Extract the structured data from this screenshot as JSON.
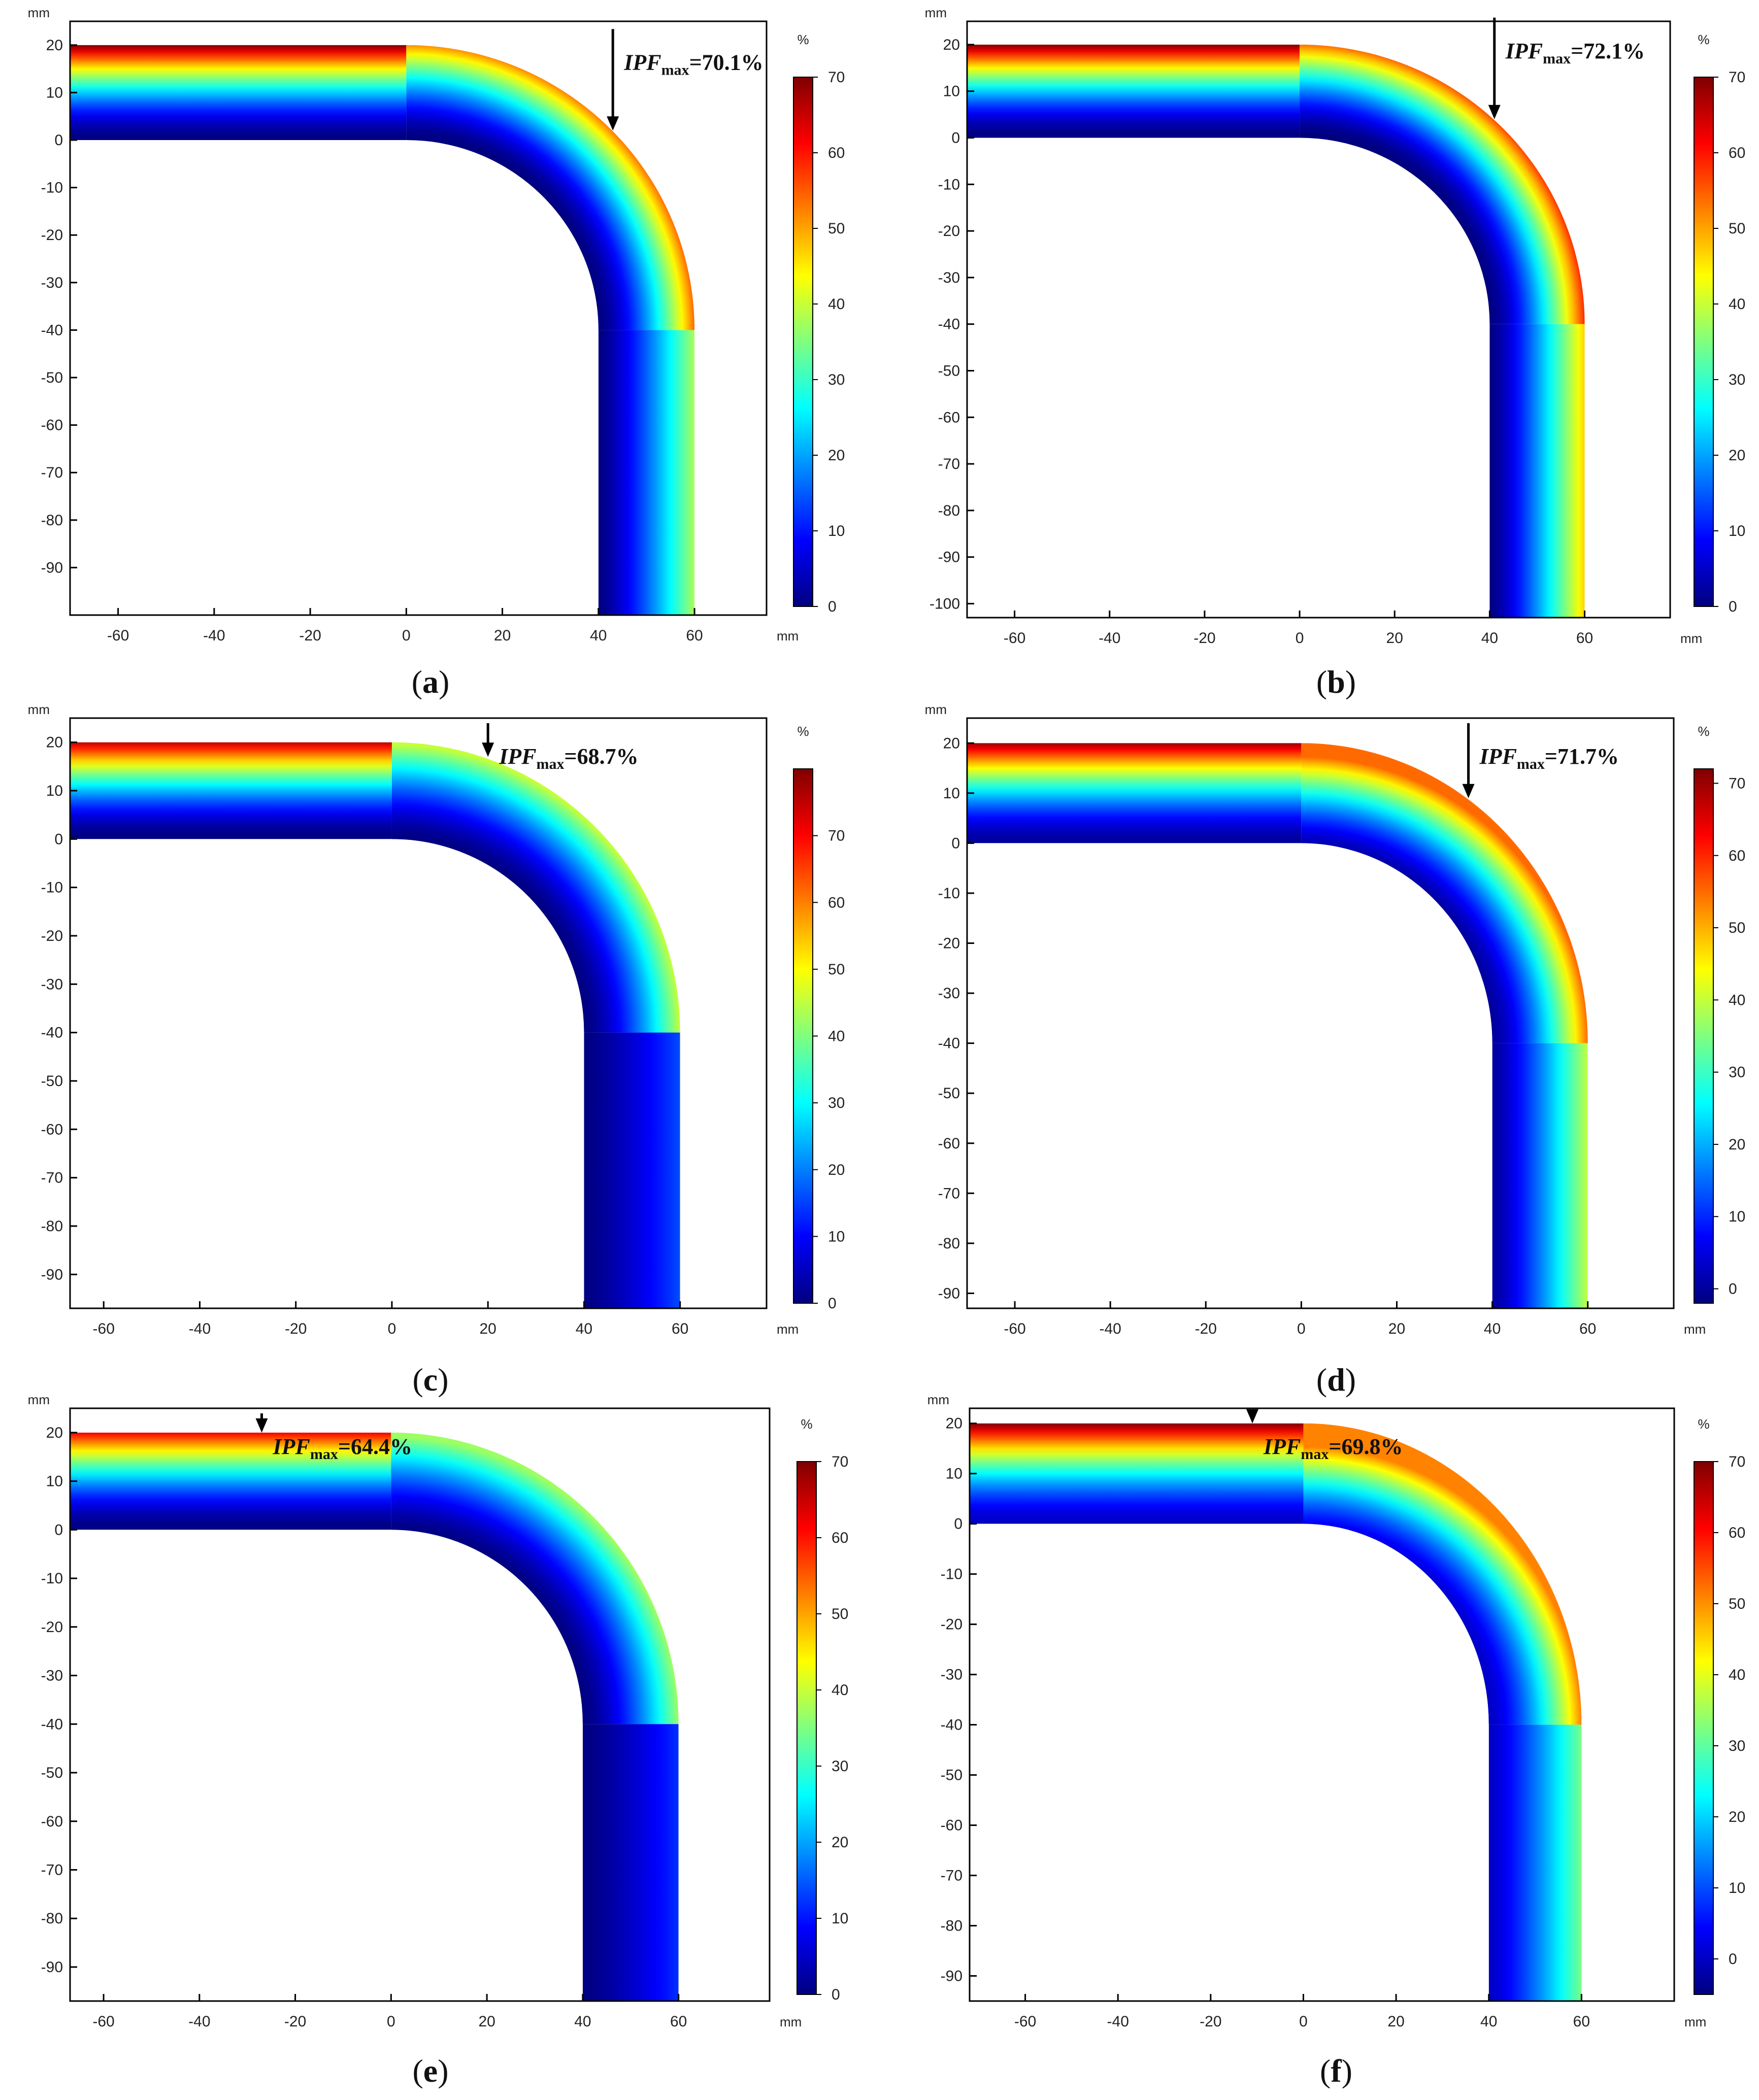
{
  "colormap": [
    "#00007f",
    "#0000ff",
    "#007fff",
    "#00ffff",
    "#7fff7f",
    "#ffff00",
    "#ff7f00",
    "#ff0000",
    "#7f0000"
  ],
  "chart_data": [
    {
      "type": "heatmap",
      "panel_label": "a",
      "x_unit": "mm",
      "y_unit": "mm",
      "colorbar_unit": "%",
      "xlim": [
        -70,
        75
      ],
      "ylim": [
        -100,
        25
      ],
      "xticks": [
        -60,
        -40,
        -20,
        0,
        20,
        40,
        60
      ],
      "yticks": [
        20,
        10,
        0,
        -10,
        -20,
        -30,
        -40,
        -50,
        -60,
        -70,
        -80,
        -90
      ],
      "colorbar_range": [
        0,
        70
      ],
      "colorbar_ticks": [
        0,
        10,
        20,
        30,
        40,
        50,
        60,
        70
      ],
      "geometry": {
        "inner_y": 0,
        "outer_y": 20,
        "inner_x": 40,
        "outer_x": 60,
        "corner_x": 0,
        "corner_y": -40,
        "bottom": -100
      },
      "field": {
        "inner_value": 0,
        "outer_value": 70,
        "leg_outer_value": 38
      },
      "annotation": {
        "label": "IPF",
        "subscript": "max",
        "value": "=70.1%",
        "x": 43,
        "y": 2
      },
      "grid": false
    },
    {
      "type": "heatmap",
      "panel_label": "b",
      "x_unit": "mm",
      "y_unit": "mm",
      "colorbar_unit": "%",
      "xlim": [
        -70,
        78
      ],
      "ylim": [
        -103,
        25
      ],
      "xticks": [
        -60,
        -40,
        -20,
        0,
        20,
        40,
        60
      ],
      "yticks": [
        20,
        10,
        0,
        -10,
        -20,
        -30,
        -40,
        -50,
        -60,
        -70,
        -80,
        -90,
        -100
      ],
      "colorbar_range": [
        0,
        70
      ],
      "colorbar_ticks": [
        0,
        10,
        20,
        30,
        40,
        50,
        60,
        70
      ],
      "geometry": {
        "inner_y": 0,
        "outer_y": 20,
        "inner_x": 40,
        "outer_x": 60,
        "corner_x": 0,
        "corner_y": -40,
        "bottom": -103
      },
      "field": {
        "inner_value": 0,
        "outer_value": 70,
        "leg_outer_value": 47
      },
      "annotation": {
        "label": "IPF",
        "subscript": "max",
        "value": "=72.1%",
        "x": 41,
        "y": 4
      },
      "grid": false
    },
    {
      "type": "heatmap",
      "panel_label": "c",
      "x_unit": "mm",
      "y_unit": "mm",
      "colorbar_unit": "%",
      "xlim": [
        -67,
        78
      ],
      "ylim": [
        -97,
        25
      ],
      "xticks": [
        -60,
        -40,
        -20,
        0,
        20,
        40,
        60
      ],
      "yticks": [
        20,
        10,
        0,
        -10,
        -20,
        -30,
        -40,
        -50,
        -60,
        -70,
        -80,
        -90
      ],
      "colorbar_range": [
        0,
        80
      ],
      "colorbar_ticks": [
        0,
        10,
        20,
        30,
        40,
        50,
        60,
        70
      ],
      "geometry": {
        "inner_y": 0,
        "outer_y": 20,
        "inner_x": 40,
        "outer_x": 60,
        "corner_x": 0,
        "corner_y": -40,
        "bottom": -97
      },
      "field": {
        "inner_value": 0,
        "outer_value": 75,
        "leg_outer_value": 16
      },
      "annotation": {
        "label": "IPF",
        "subscript": "max",
        "value": "=68.7%",
        "x": 20,
        "y": 17
      },
      "grid": false
    },
    {
      "type": "heatmap",
      "panel_label": "d",
      "x_unit": "mm",
      "y_unit": "mm",
      "colorbar_unit": "%",
      "xlim": [
        -70,
        78
      ],
      "ylim": [
        -93,
        25
      ],
      "xticks": [
        -60,
        -40,
        -20,
        0,
        20,
        40,
        60
      ],
      "yticks": [
        20,
        10,
        0,
        -10,
        -20,
        -30,
        -40,
        -50,
        -60,
        -70,
        -80,
        -90
      ],
      "colorbar_range": [
        -2,
        72
      ],
      "colorbar_ticks": [
        0,
        10,
        20,
        30,
        40,
        50,
        60,
        70
      ],
      "geometry": {
        "inner_y": 0,
        "outer_y": 20,
        "inner_x": 40,
        "outer_x": 60,
        "corner_x": 0,
        "corner_y": -40,
        "bottom": -93
      },
      "field": {
        "inner_value": 0,
        "outer_value": 70,
        "leg_outer_value": 40
      },
      "annotation": {
        "label": "IPF",
        "subscript": "max",
        "value": "=71.7%",
        "x": 35,
        "y": 9
      },
      "grid": false
    },
    {
      "type": "heatmap",
      "panel_label": "e",
      "x_unit": "mm",
      "y_unit": "mm",
      "colorbar_unit": "%",
      "xlim": [
        -67,
        79
      ],
      "ylim": [
        -97,
        25
      ],
      "xticks": [
        -60,
        -40,
        -20,
        0,
        20,
        40,
        60
      ],
      "yticks": [
        20,
        10,
        0,
        -10,
        -20,
        -30,
        -40,
        -50,
        -60,
        -70,
        -80,
        -90
      ],
      "colorbar_range": [
        0,
        70
      ],
      "colorbar_ticks": [
        0,
        10,
        20,
        30,
        40,
        50,
        60,
        70
      ],
      "geometry": {
        "inner_y": 0,
        "outer_y": 20,
        "inner_x": 40,
        "outer_x": 60,
        "corner_x": 0,
        "corner_y": -40,
        "bottom": -97
      },
      "field": {
        "inner_value": 0,
        "outer_value": 62,
        "leg_outer_value": 12
      },
      "annotation": {
        "label": "IPF",
        "subscript": "max",
        "value": "=64.4%",
        "x": -27,
        "y": 20
      },
      "grid": false
    },
    {
      "type": "heatmap",
      "panel_label": "f",
      "x_unit": "mm",
      "y_unit": "mm",
      "colorbar_unit": "%",
      "xlim": [
        -72,
        80
      ],
      "ylim": [
        -95,
        23
      ],
      "xticks": [
        -60,
        -40,
        -20,
        0,
        20,
        40,
        60
      ],
      "yticks": [
        20,
        10,
        0,
        -10,
        -20,
        -30,
        -40,
        -50,
        -60,
        -70,
        -80,
        -90
      ],
      "colorbar_range": [
        -5,
        70
      ],
      "colorbar_ticks": [
        0,
        10,
        20,
        30,
        40,
        50,
        60,
        70
      ],
      "geometry": {
        "inner_y": 0,
        "outer_y": 20,
        "inner_x": 40,
        "outer_x": 60,
        "corner_x": 0,
        "corner_y": -40,
        "bottom": -95
      },
      "field": {
        "inner_value": 0,
        "outer_value": 70,
        "leg_outer_value": 32
      },
      "annotation": {
        "label": "IPF",
        "subscript": "max",
        "value": "=69.8%",
        "x": -11,
        "y": 20
      },
      "grid": false
    }
  ]
}
